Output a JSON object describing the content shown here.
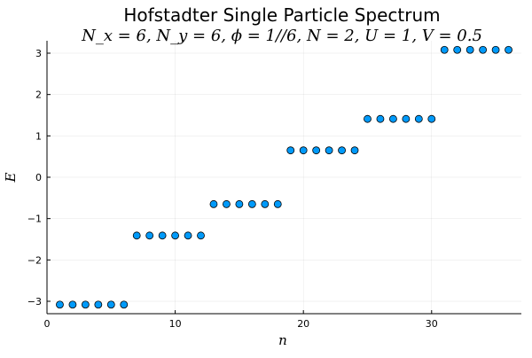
{
  "chart_data": {
    "type": "scatter",
    "title": "Hofstadter Single Particle Spectrum",
    "subtitle": "N_x = 6, N_y = 6, ϕ = 1//6, N = 2, U = 1, V = 0.5",
    "xlabel": "n",
    "ylabel": "E",
    "xlim": [
      0,
      37
    ],
    "ylim": [
      -3.3,
      3.3
    ],
    "xticks": [
      0,
      10,
      20,
      30
    ],
    "yticks": [
      -3,
      -2,
      -1,
      0,
      1,
      2,
      3
    ],
    "xtick_labels": [
      "0",
      "10",
      "20",
      "30"
    ],
    "ytick_labels": [
      "−3",
      "−2",
      "−1",
      "0",
      "1",
      "2",
      "3"
    ],
    "grid": true,
    "legend": "none",
    "marker_color": "#009AFA",
    "marker_edge_color": "#000000",
    "series": [
      {
        "x": [
          1,
          2,
          3,
          4,
          5,
          6,
          7,
          8,
          9,
          10,
          11,
          12,
          13,
          14,
          15,
          16,
          17,
          18,
          19,
          20,
          21,
          22,
          23,
          24,
          25,
          26,
          27,
          28,
          29,
          30,
          31,
          32,
          33,
          34,
          35,
          36
        ],
        "y": [
          -3.08,
          -3.08,
          -3.08,
          -3.08,
          -3.08,
          -3.08,
          -1.41,
          -1.41,
          -1.41,
          -1.41,
          -1.41,
          -1.41,
          -0.65,
          -0.65,
          -0.65,
          -0.65,
          -0.65,
          -0.65,
          0.65,
          0.65,
          0.65,
          0.65,
          0.65,
          0.65,
          1.41,
          1.41,
          1.41,
          1.41,
          1.41,
          1.41,
          3.08,
          3.08,
          3.08,
          3.08,
          3.08,
          3.08
        ]
      }
    ]
  }
}
